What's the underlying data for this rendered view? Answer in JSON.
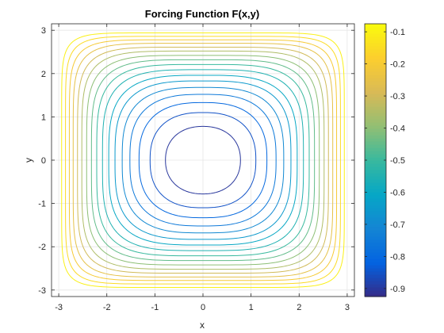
{
  "chart_data": {
    "type": "contour",
    "title": "Forcing Function F(x,y)",
    "xlabel": "x",
    "ylabel": "y",
    "xlim": [
      -3.15,
      3.15
    ],
    "ylim": [
      -3.15,
      3.15
    ],
    "xticks": [
      -3,
      -2,
      -1,
      0,
      1,
      2,
      3
    ],
    "yticks": [
      -3,
      -2,
      -1,
      0,
      1,
      2,
      3
    ],
    "grid": true,
    "box": true,
    "levels": [
      -0.9,
      -0.85,
      -0.8,
      -0.75,
      -0.7,
      -0.65,
      -0.6,
      -0.55,
      -0.5,
      -0.45,
      -0.4,
      -0.35,
      -0.3,
      -0.25,
      -0.2,
      -0.15,
      -0.1
    ],
    "contours": [
      {
        "level": -0.9,
        "half_width": 0.78,
        "exponent": 2.2
      },
      {
        "level": -0.85,
        "half_width": 1.1,
        "exponent": 2.45
      },
      {
        "level": -0.8,
        "half_width": 1.33,
        "exponent": 2.6
      },
      {
        "level": -0.75,
        "half_width": 1.52,
        "exponent": 2.8
      },
      {
        "level": -0.7,
        "half_width": 1.68,
        "exponent": 3.0
      },
      {
        "level": -0.65,
        "half_width": 1.83,
        "exponent": 3.2
      },
      {
        "level": -0.6,
        "half_width": 1.96,
        "exponent": 3.4
      },
      {
        "level": -0.55,
        "half_width": 2.09,
        "exponent": 3.7
      },
      {
        "level": -0.5,
        "half_width": 2.21,
        "exponent": 4.0
      },
      {
        "level": -0.45,
        "half_width": 2.32,
        "exponent": 4.3
      },
      {
        "level": -0.4,
        "half_width": 2.42,
        "exponent": 4.7
      },
      {
        "level": -0.35,
        "half_width": 2.52,
        "exponent": 5.1
      },
      {
        "level": -0.3,
        "half_width": 2.61,
        "exponent": 5.6
      },
      {
        "level": -0.25,
        "half_width": 2.7,
        "exponent": 6.2
      },
      {
        "level": -0.2,
        "half_width": 2.78,
        "exponent": 7.0
      },
      {
        "level": -0.15,
        "half_width": 2.86,
        "exponent": 8.0
      },
      {
        "level": -0.1,
        "half_width": 2.94,
        "exponent": 9.0
      }
    ],
    "colorbar": {
      "colormap": "parula",
      "clim": [
        -0.925,
        -0.075
      ],
      "ticks": [
        -0.9,
        -0.8,
        -0.7,
        -0.6,
        -0.5,
        -0.4,
        -0.3,
        -0.2,
        -0.1
      ],
      "tick_labels": [
        "-0.9",
        "-0.8",
        "-0.7",
        "-0.6",
        "-0.5",
        "-0.4",
        "-0.3",
        "-0.2",
        "-0.1"
      ],
      "placement": "right"
    },
    "colors": {
      "axis": "#262626",
      "grid": "#e6e6e6",
      "background": "#ffffff"
    }
  }
}
